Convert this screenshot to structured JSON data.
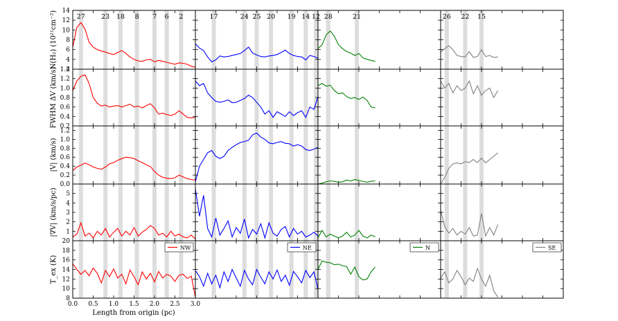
{
  "chart_data": {
    "type": "line",
    "columns": [
      {
        "name": "NW",
        "color": "#ff0000",
        "length_pc": 3.0
      },
      {
        "name": "NE",
        "color": "#0000ff",
        "length_pc": 3.0
      },
      {
        "name": "N",
        "color": "#008000",
        "length_pc": 3.0
      },
      {
        "name": "SE",
        "color": "#808080",
        "length_pc": 3.0
      }
    ],
    "xlabel": "Length from origin (pc)",
    "xlim": [
      0.0,
      3.0
    ],
    "xticks": [
      0.0,
      0.5,
      1.0,
      1.5,
      2.0,
      2.5,
      3.0
    ],
    "xtick_labels": [
      "0.0",
      "0.5",
      "1.0",
      "1.5",
      "2.0",
      "2.5",
      "3.0"
    ],
    "rows": [
      {
        "key": "nh2",
        "ylabel": "N(H₂) (10²¹cm⁻²)",
        "ylim": [
          2,
          14
        ],
        "yticks": [
          2,
          4,
          6,
          8,
          10,
          12,
          14
        ],
        "ytick_labels": [
          "2",
          "4",
          "6",
          "8",
          "10",
          "12",
          "14"
        ]
      },
      {
        "key": "fwhm",
        "ylabel": "FWHM ΔV (km/s)",
        "ylim": [
          0.2,
          1.4
        ],
        "yticks": [
          0.2,
          0.4,
          0.6,
          0.8,
          1.0,
          1.2,
          1.4
        ],
        "ytick_labels": [
          "0.2",
          "0.4",
          "0.6",
          "0.8",
          "1.0",
          "1.2",
          "1.4"
        ]
      },
      {
        "key": "vel",
        "ylabel": "|V| (km/s)",
        "ylim": [
          0.0,
          1.3
        ],
        "yticks": [
          0.0,
          0.2,
          0.4,
          0.6,
          0.8,
          1.0,
          1.2
        ],
        "ytick_labels": [
          "0.0",
          "0.2",
          "0.4",
          "0.6",
          "0.8",
          "1.0",
          "1.2"
        ]
      },
      {
        "key": "grad",
        "ylabel": "|∇V| (km/s/pc)",
        "ylim": [
          0,
          6
        ],
        "yticks": [
          1,
          2,
          3,
          4,
          5
        ],
        "ytick_labels": [
          "1",
          "2",
          "3",
          "4",
          "5"
        ]
      },
      {
        "key": "tex",
        "ylabel": "T_ex (K)",
        "ylim": [
          8,
          20
        ],
        "yticks": [
          8,
          10,
          12,
          14,
          16,
          18,
          20
        ],
        "ytick_labels": [
          "8",
          "10",
          "12",
          "14",
          "16",
          "18",
          "20"
        ]
      }
    ],
    "markers": [
      {
        "col": 0,
        "items": [
          {
            "id": "27",
            "x": 0.2
          },
          {
            "id": "23",
            "x": 0.8
          },
          {
            "id": "18",
            "x": 1.17
          },
          {
            "id": "8",
            "x": 1.57
          },
          {
            "id": "7",
            "x": 2.0
          },
          {
            "id": "6",
            "x": 2.3
          },
          {
            "id": "2",
            "x": 2.65
          }
        ]
      },
      {
        "col": 1,
        "items": [
          {
            "id": "17",
            "x": 0.45
          },
          {
            "id": "24",
            "x": 1.2
          },
          {
            "id": "25",
            "x": 1.5
          },
          {
            "id": "20",
            "x": 1.85
          },
          {
            "id": "19",
            "x": 2.35
          },
          {
            "id": "14",
            "x": 2.7
          },
          {
            "id": "12",
            "x": 2.95
          }
        ]
      },
      {
        "col": 2,
        "items": [
          {
            "id": "28",
            "x": 0.25
          },
          {
            "id": "21",
            "x": 0.95
          }
        ]
      },
      {
        "col": 3,
        "items": [
          {
            "id": "26",
            "x": 0.15
          },
          {
            "id": "22",
            "x": 0.6
          },
          {
            "id": "15",
            "x": 1.0
          }
        ]
      }
    ],
    "series": [
      {
        "name": "NW",
        "x": [
          0.0,
          0.1,
          0.2,
          0.3,
          0.4,
          0.5,
          0.6,
          0.7,
          0.8,
          0.9,
          1.0,
          1.1,
          1.2,
          1.3,
          1.4,
          1.5,
          1.6,
          1.7,
          1.8,
          1.9,
          2.0,
          2.1,
          2.2,
          2.3,
          2.4,
          2.5,
          2.6,
          2.7,
          2.8,
          2.9,
          3.0
        ],
        "nh2": [
          6.5,
          10.5,
          11.5,
          10.2,
          7.5,
          6.5,
          6.0,
          5.7,
          5.5,
          5.2,
          5.0,
          5.4,
          5.8,
          5.2,
          4.5,
          4.0,
          3.7,
          3.6,
          3.9,
          4.0,
          3.5,
          3.8,
          3.6,
          3.4,
          3.2,
          3.0,
          3.3,
          3.2,
          3.0,
          2.6,
          2.4
        ],
        "fwhm": [
          0.95,
          1.15,
          1.25,
          1.28,
          1.1,
          0.8,
          0.68,
          0.62,
          0.64,
          0.6,
          0.62,
          0.63,
          0.6,
          0.63,
          0.66,
          0.6,
          0.62,
          0.58,
          0.63,
          0.67,
          0.58,
          0.45,
          0.47,
          0.44,
          0.42,
          0.45,
          0.52,
          0.45,
          0.38,
          0.37,
          0.38
        ],
        "vel": [
          0.3,
          0.38,
          0.42,
          0.47,
          0.43,
          0.38,
          0.35,
          0.33,
          0.38,
          0.45,
          0.48,
          0.53,
          0.57,
          0.6,
          0.59,
          0.57,
          0.52,
          0.48,
          0.43,
          0.39,
          0.28,
          0.2,
          0.15,
          0.13,
          0.12,
          0.14,
          0.2,
          0.16,
          0.12,
          0.1,
          0.09
        ],
        "grad": [
          0.4,
          0.7,
          1.9,
          0.5,
          0.8,
          0.3,
          1.0,
          0.6,
          1.3,
          0.4,
          0.9,
          1.3,
          0.5,
          1.0,
          0.6,
          1.4,
          0.5,
          0.9,
          1.2,
          1.6,
          1.3,
          0.6,
          0.8,
          0.4,
          1.0,
          0.5,
          0.7,
          0.4,
          0.3,
          0.6,
          0.2
        ],
        "tex": [
          15.2,
          14.0,
          13.0,
          13.8,
          12.7,
          14.3,
          13.2,
          11.2,
          13.8,
          12.5,
          14.1,
          12.2,
          13.0,
          11.0,
          13.9,
          12.5,
          10.8,
          13.5,
          12.0,
          13.2,
          11.4,
          13.6,
          12.2,
          13.0,
          12.6,
          11.5,
          12.8,
          13.0,
          12.1,
          12.6,
          8.2
        ]
      },
      {
        "name": "NE",
        "x": [
          0.0,
          0.1,
          0.2,
          0.3,
          0.4,
          0.5,
          0.6,
          0.7,
          0.8,
          0.9,
          1.0,
          1.1,
          1.2,
          1.3,
          1.4,
          1.5,
          1.6,
          1.7,
          1.8,
          1.9,
          2.0,
          2.1,
          2.2,
          2.3,
          2.4,
          2.5,
          2.6,
          2.7,
          2.8,
          2.9,
          3.0
        ],
        "nh2": [
          7.2,
          6.3,
          5.8,
          4.5,
          3.5,
          3.9,
          4.7,
          4.5,
          4.6,
          4.8,
          5.0,
          5.2,
          5.8,
          6.5,
          5.3,
          4.9,
          4.6,
          4.5,
          4.7,
          4.8,
          5.0,
          5.4,
          5.9,
          5.2,
          4.8,
          4.6,
          4.5,
          3.9,
          4.8,
          4.6,
          4.2
        ],
        "fwhm": [
          1.15,
          1.05,
          1.1,
          0.9,
          0.8,
          0.72,
          0.7,
          0.72,
          0.75,
          0.69,
          0.7,
          0.74,
          0.78,
          0.85,
          0.8,
          0.7,
          0.6,
          0.45,
          0.52,
          0.38,
          0.5,
          0.45,
          0.4,
          0.5,
          0.42,
          0.48,
          0.52,
          0.38,
          0.6,
          0.55,
          0.82
        ],
        "vel": [
          0.05,
          0.4,
          0.55,
          0.7,
          0.75,
          0.62,
          0.57,
          0.62,
          0.75,
          0.82,
          0.88,
          0.93,
          0.95,
          0.98,
          1.1,
          1.14,
          1.05,
          1.0,
          0.92,
          0.9,
          0.93,
          0.95,
          0.91,
          0.9,
          0.85,
          0.88,
          0.85,
          0.77,
          0.75,
          0.78,
          0.82
        ],
        "grad": [
          5.5,
          2.6,
          4.8,
          1.3,
          0.4,
          2.4,
          0.6,
          1.3,
          2.1,
          0.4,
          1.4,
          0.8,
          2.3,
          0.3,
          1.2,
          0.7,
          1.8,
          0.3,
          1.9,
          0.8,
          0.5,
          1.2,
          1.5,
          0.4,
          1.3,
          0.7,
          1.0,
          0.4,
          0.6,
          0.9,
          0.5
        ],
        "tex": [
          13.8,
          12.5,
          10.5,
          13.2,
          11.0,
          12.8,
          10.2,
          13.5,
          11.5,
          14.0,
          12.2,
          10.5,
          13.8,
          12.0,
          10.8,
          14.0,
          12.4,
          11.0,
          13.5,
          12.0,
          13.9,
          11.5,
          12.8,
          10.7,
          13.6,
          12.5,
          11.2,
          13.8,
          12.3,
          13.5,
          9.8
        ]
      },
      {
        "name": "N",
        "x": [
          0.0,
          0.1,
          0.2,
          0.3,
          0.4,
          0.5,
          0.6,
          0.7,
          0.8,
          0.9,
          1.0,
          1.1,
          1.2,
          1.3,
          1.4
        ],
        "nh2": [
          6.2,
          7.0,
          9.0,
          9.8,
          8.7,
          7.0,
          6.2,
          5.6,
          5.3,
          4.8,
          5.2,
          4.3,
          4.0,
          3.8,
          3.6
        ],
        "fwhm": [
          1.05,
          1.1,
          1.04,
          1.06,
          0.95,
          0.88,
          0.9,
          0.82,
          0.78,
          0.8,
          0.76,
          0.81,
          0.74,
          0.6,
          0.58
        ],
        "vel": [
          0.0,
          0.02,
          0.05,
          0.07,
          0.06,
          0.04,
          0.05,
          0.09,
          0.07,
          0.1,
          0.08,
          0.06,
          0.04,
          0.06,
          0.07
        ],
        "grad": [
          0.3,
          1.1,
          0.4,
          0.7,
          0.5,
          0.3,
          0.5,
          0.9,
          0.4,
          0.6,
          1.1,
          0.5,
          0.3,
          0.6,
          0.4
        ],
        "tex": [
          14.0,
          15.8,
          15.5,
          15.4,
          15.0,
          15.1,
          14.8,
          14.6,
          13.0,
          14.5,
          12.5,
          11.8,
          12.0,
          13.5,
          14.5
        ]
      },
      {
        "name": "SE",
        "x": [
          0.0,
          0.1,
          0.2,
          0.3,
          0.4,
          0.5,
          0.6,
          0.7,
          0.8,
          0.9,
          1.0,
          1.1,
          1.2,
          1.3,
          1.4
        ],
        "nh2": [
          5.5,
          6.2,
          6.8,
          6.0,
          4.8,
          4.6,
          4.5,
          5.6,
          4.4,
          4.6,
          6.0,
          4.6,
          4.8,
          4.4,
          4.5
        ],
        "fwhm": [
          1.15,
          1.0,
          1.1,
          0.9,
          1.05,
          0.95,
          1.0,
          1.15,
          0.88,
          1.05,
          0.85,
          0.95,
          1.0,
          0.8,
          0.95
        ],
        "vel": [
          0.0,
          0.15,
          0.35,
          0.45,
          0.47,
          0.45,
          0.5,
          0.48,
          0.55,
          0.48,
          0.58,
          0.47,
          0.55,
          0.62,
          0.7
        ],
        "grad": [
          3.2,
          1.5,
          0.8,
          1.3,
          0.6,
          1.0,
          0.7,
          1.4,
          0.5,
          0.6,
          2.9,
          0.5,
          1.4,
          0.6,
          1.7
        ],
        "tex": [
          12.2,
          13.5,
          11.2,
          12.0,
          13.8,
          12.5,
          10.8,
          12.2,
          11.5,
          14.2,
          12.0,
          10.5,
          12.8,
          9.5,
          8.2
        ]
      }
    ]
  }
}
